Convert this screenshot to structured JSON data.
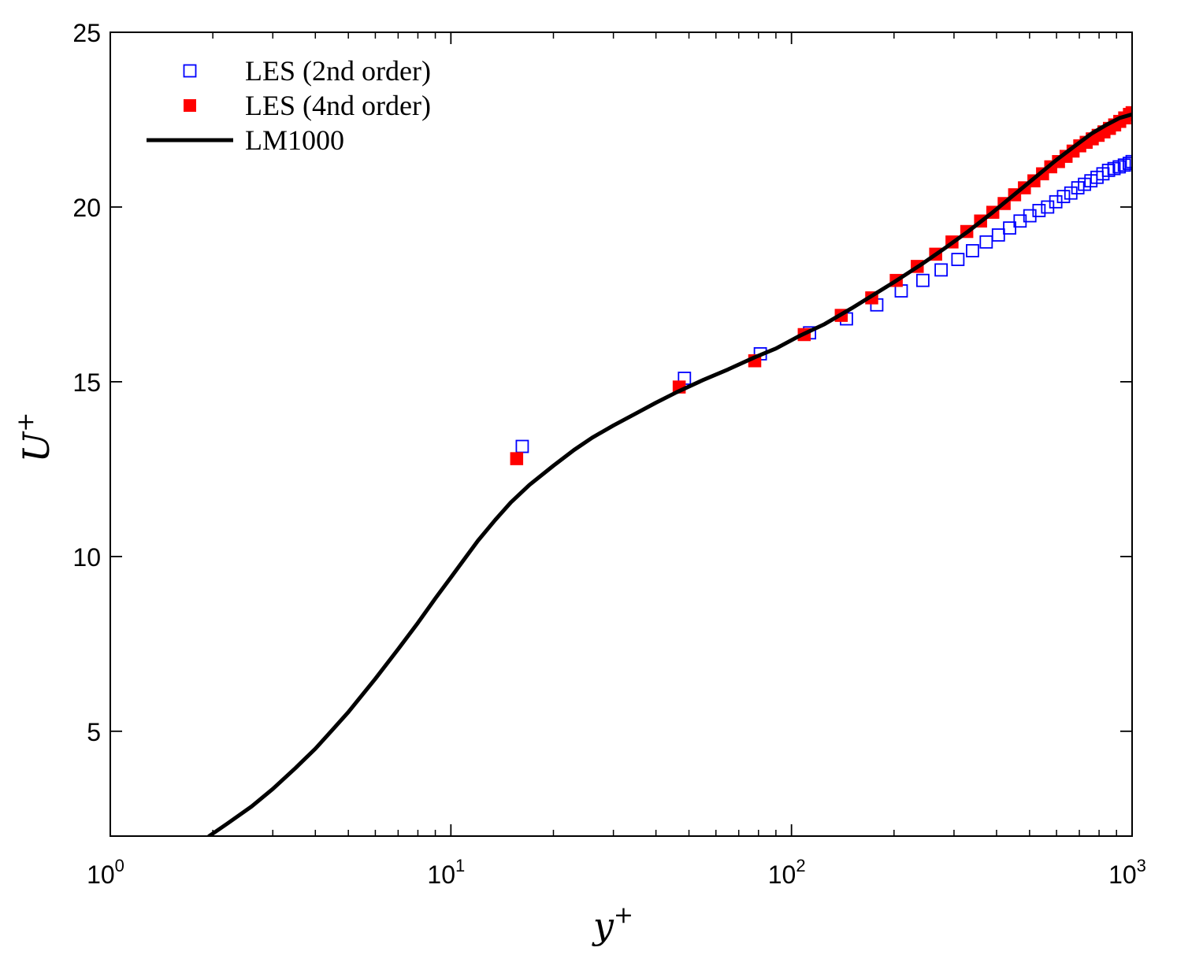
{
  "chart_data": {
    "type": "scatter",
    "xscale": "log",
    "xlim": [
      1,
      1000
    ],
    "ylim": [
      2,
      25
    ],
    "xticks": [
      {
        "base": "10",
        "exp": "0",
        "value": 1
      },
      {
        "base": "10",
        "exp": "1",
        "value": 10
      },
      {
        "base": "10",
        "exp": "2",
        "value": 100
      },
      {
        "base": "10",
        "exp": "3",
        "value": 1000
      }
    ],
    "yticks": [
      {
        "label": "5",
        "value": 5
      },
      {
        "label": "10",
        "value": 10
      },
      {
        "label": "15",
        "value": 15
      },
      {
        "label": "20",
        "value": 20
      },
      {
        "label": "25",
        "value": 25
      }
    ],
    "xlabel": {
      "base": "y",
      "sup": "+"
    },
    "ylabel": {
      "base": "U",
      "sup": "+"
    },
    "grid": false,
    "legend_position": "top-left",
    "series": [
      {
        "name": "LES (2nd order)",
        "marker": "open-square",
        "color": "#0000ff",
        "points": [
          [
            16.2,
            13.15
          ],
          [
            48.5,
            15.1
          ],
          [
            81,
            15.8
          ],
          [
            113,
            16.4
          ],
          [
            145,
            16.8
          ],
          [
            178,
            17.2
          ],
          [
            210,
            17.6
          ],
          [
            243,
            17.9
          ],
          [
            275,
            18.2
          ],
          [
            308,
            18.5
          ],
          [
            340,
            18.75
          ],
          [
            373,
            19.0
          ],
          [
            405,
            19.2
          ],
          [
            437,
            19.4
          ],
          [
            469,
            19.6
          ],
          [
            501,
            19.75
          ],
          [
            533,
            19.9
          ],
          [
            565,
            20.0
          ],
          [
            597,
            20.15
          ],
          [
            629,
            20.3
          ],
          [
            661,
            20.4
          ],
          [
            693,
            20.55
          ],
          [
            725,
            20.65
          ],
          [
            757,
            20.75
          ],
          [
            789,
            20.85
          ],
          [
            821,
            20.95
          ],
          [
            853,
            21.05
          ],
          [
            885,
            21.1
          ],
          [
            917,
            21.15
          ],
          [
            949,
            21.2
          ],
          [
            981,
            21.25
          ],
          [
            1000,
            21.3
          ]
        ]
      },
      {
        "name": "LES (4nd order)",
        "marker": "filled-square",
        "color": "#ff0000",
        "points": [
          [
            15.6,
            12.8
          ],
          [
            46.8,
            14.85
          ],
          [
            78,
            15.6
          ],
          [
            109,
            16.35
          ],
          [
            140,
            16.9
          ],
          [
            172,
            17.4
          ],
          [
            203,
            17.9
          ],
          [
            234,
            18.3
          ],
          [
            265,
            18.65
          ],
          [
            296,
            19.0
          ],
          [
            327,
            19.3
          ],
          [
            359,
            19.6
          ],
          [
            390,
            19.85
          ],
          [
            421,
            20.1
          ],
          [
            452,
            20.35
          ],
          [
            483,
            20.55
          ],
          [
            515,
            20.75
          ],
          [
            546,
            20.95
          ],
          [
            577,
            21.15
          ],
          [
            608,
            21.3
          ],
          [
            640,
            21.45
          ],
          [
            671,
            21.6
          ],
          [
            702,
            21.75
          ],
          [
            733,
            21.85
          ],
          [
            764,
            21.95
          ],
          [
            795,
            22.05
          ],
          [
            827,
            22.15
          ],
          [
            858,
            22.25
          ],
          [
            889,
            22.35
          ],
          [
            920,
            22.45
          ],
          [
            951,
            22.55
          ],
          [
            982,
            22.65
          ],
          [
            1000,
            22.7
          ]
        ]
      },
      {
        "name": "LM1000",
        "marker": "line",
        "color": "#000000",
        "points": [
          [
            1.95,
            2.0
          ],
          [
            2.2,
            2.35
          ],
          [
            2.6,
            2.85
          ],
          [
            3.0,
            3.35
          ],
          [
            3.5,
            3.95
          ],
          [
            4.0,
            4.5
          ],
          [
            4.5,
            5.05
          ],
          [
            5.0,
            5.55
          ],
          [
            6.0,
            6.5
          ],
          [
            7.0,
            7.35
          ],
          [
            8.0,
            8.1
          ],
          [
            9.0,
            8.8
          ],
          [
            10.0,
            9.4
          ],
          [
            11.0,
            9.95
          ],
          [
            12.0,
            10.45
          ],
          [
            13.5,
            11.05
          ],
          [
            15.0,
            11.55
          ],
          [
            17.0,
            12.05
          ],
          [
            20.0,
            12.6
          ],
          [
            23.0,
            13.05
          ],
          [
            26.0,
            13.4
          ],
          [
            30.0,
            13.75
          ],
          [
            35.0,
            14.1
          ],
          [
            40.0,
            14.4
          ],
          [
            46.0,
            14.7
          ],
          [
            55.0,
            15.05
          ],
          [
            65.0,
            15.35
          ],
          [
            78.0,
            15.7
          ],
          [
            90.0,
            15.95
          ],
          [
            105.0,
            16.3
          ],
          [
            125.0,
            16.65
          ],
          [
            150.0,
            17.1
          ],
          [
            175.0,
            17.5
          ],
          [
            200.0,
            17.85
          ],
          [
            240.0,
            18.35
          ],
          [
            280.0,
            18.8
          ],
          [
            330.0,
            19.3
          ],
          [
            390.0,
            19.85
          ],
          [
            450.0,
            20.35
          ],
          [
            520.0,
            20.85
          ],
          [
            600.0,
            21.35
          ],
          [
            680.0,
            21.75
          ],
          [
            760.0,
            22.1
          ],
          [
            840.0,
            22.35
          ],
          [
            920.0,
            22.55
          ],
          [
            1000.0,
            22.65
          ]
        ]
      }
    ]
  }
}
